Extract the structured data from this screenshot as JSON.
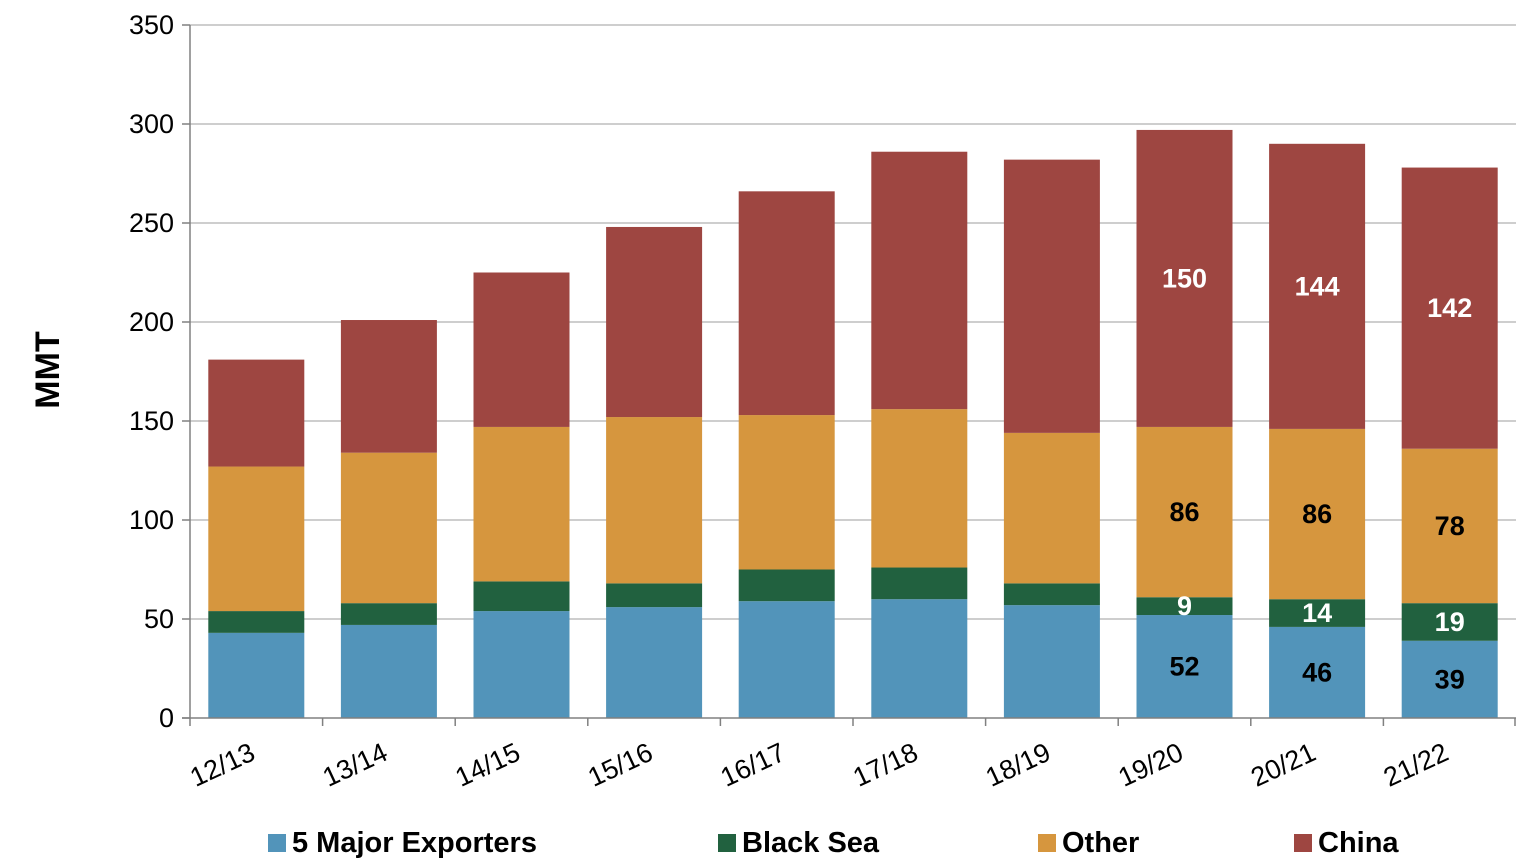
{
  "chart_data": {
    "type": "bar",
    "stacked": true,
    "title": "",
    "xlabel": "",
    "ylabel": "MMT",
    "ylim": [
      0,
      350
    ],
    "yticks": [
      0,
      50,
      100,
      150,
      200,
      250,
      300,
      350
    ],
    "grid": true,
    "legend_position": "bottom",
    "categories": [
      "12/13",
      "13/14",
      "14/15",
      "15/16",
      "16/17",
      "17/18",
      "18/19",
      "19/20",
      "20/21",
      "21/22"
    ],
    "series": [
      {
        "name": "5 Major Exporters",
        "color": "#5294BA",
        "label_color": "#000000",
        "values": [
          43,
          47,
          54,
          56,
          59,
          60,
          57,
          52,
          46,
          39
        ],
        "data_labels": [
          null,
          null,
          null,
          null,
          null,
          null,
          null,
          "52",
          "46",
          "39"
        ]
      },
      {
        "name": "Black Sea",
        "color": "#21613F",
        "label_color": "#FFFFFF",
        "values": [
          11,
          11,
          15,
          12,
          16,
          16,
          11,
          9,
          14,
          19
        ],
        "data_labels": [
          null,
          null,
          null,
          null,
          null,
          null,
          null,
          "9",
          "14",
          "19"
        ]
      },
      {
        "name": "Other",
        "color": "#D6963E",
        "label_color": "#000000",
        "values": [
          73,
          76,
          78,
          84,
          78,
          80,
          76,
          86,
          86,
          78
        ],
        "data_labels": [
          null,
          null,
          null,
          null,
          null,
          null,
          null,
          "86",
          "86",
          "78"
        ]
      },
      {
        "name": "China",
        "color": "#9E4641",
        "label_color": "#FFFFFF",
        "values": [
          54,
          67,
          78,
          96,
          113,
          130,
          138,
          150,
          144,
          142
        ],
        "data_labels": [
          null,
          null,
          null,
          null,
          null,
          null,
          null,
          "150",
          "144",
          "142"
        ]
      }
    ]
  }
}
